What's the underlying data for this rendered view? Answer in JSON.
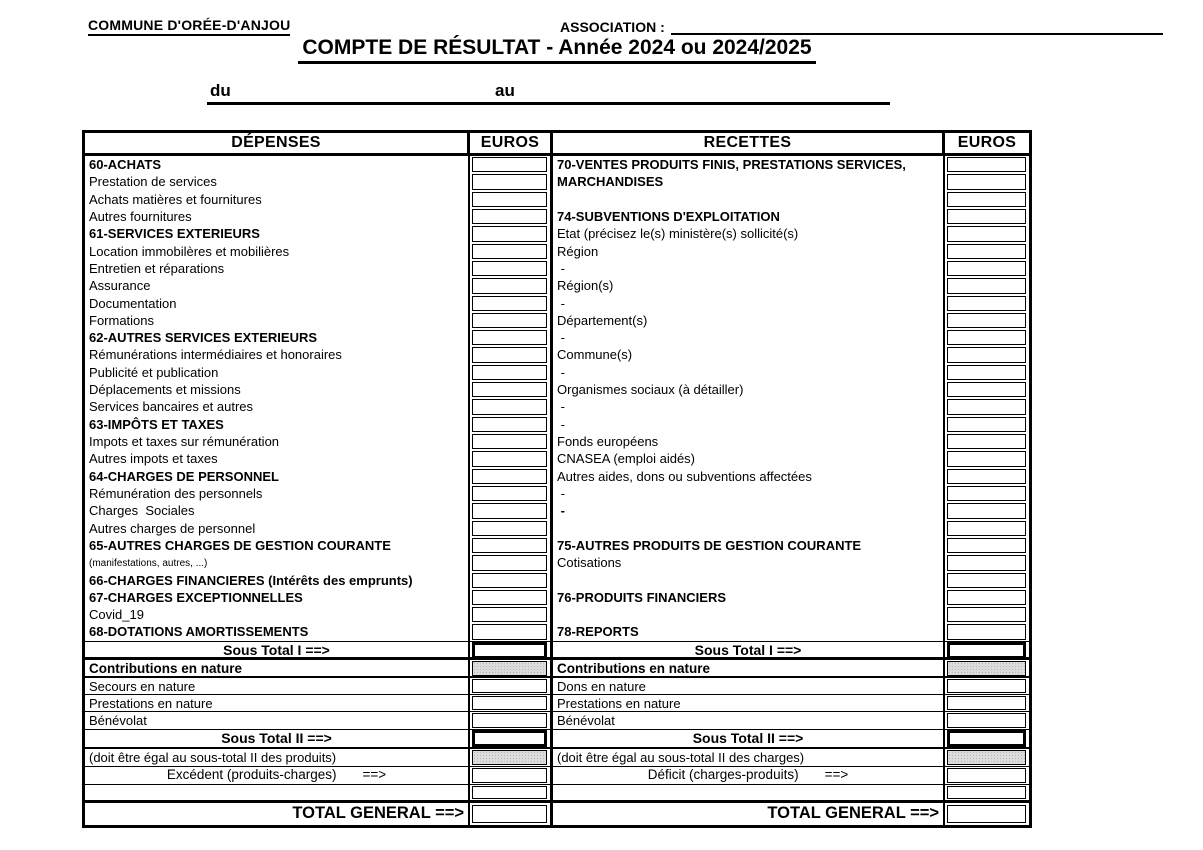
{
  "header": {
    "commune": "COMMUNE D'ORÉE-D'ANJOU",
    "association_label": "ASSOCIATION :",
    "title": "COMPTE DE RÉSULTAT - Année 2024 ou 2024/2025",
    "date_from_label": "du",
    "date_to_label": "au"
  },
  "table": {
    "headers": {
      "depenses": "DÉPENSES",
      "euros_left": "EUROS",
      "recettes": "RECETTES",
      "euros_right": "EUROS"
    },
    "body_rows": [
      {
        "dep": "60-ACHATS",
        "ds": "b",
        "rec": "70-VENTES PRODUITS FINIS, PRESTATIONS SERVICES,",
        "rs": "b"
      },
      {
        "dep": "Prestation de services",
        "ds": "n",
        "rec": "MARCHANDISES",
        "rs": "b"
      },
      {
        "dep": "Achats matières et fournitures",
        "ds": "n",
        "rec": "",
        "rs": "e"
      },
      {
        "dep": "Autres fournitures",
        "ds": "n",
        "rec": "74-SUBVENTIONS D'EXPLOITATION",
        "rs": "b"
      },
      {
        "dep": "61-SERVICES EXTERIEURS",
        "ds": "b",
        "rec": "Etat (précisez le(s) ministère(s) sollicité(s)",
        "rs": "n"
      },
      {
        "dep": "Location immobilères et mobilières",
        "ds": "n",
        "rec": "Région",
        "rs": "n"
      },
      {
        "dep": "Entretien et réparations",
        "ds": "n",
        "rec": " -",
        "rs": "n"
      },
      {
        "dep": "Assurance",
        "ds": "n",
        "rec": "Région(s)",
        "rs": "n"
      },
      {
        "dep": "Documentation",
        "ds": "n",
        "rec": " -",
        "rs": "n"
      },
      {
        "dep": "Formations",
        "ds": "n",
        "rec": "Département(s)",
        "rs": "n"
      },
      {
        "dep": "62-AUTRES SERVICES EXTERIEURS",
        "ds": "b",
        "rec": " -",
        "rs": "n"
      },
      {
        "dep": "Rémunérations intermédiaires et honoraires",
        "ds": "n",
        "rec": "Commune(s)",
        "rs": "n"
      },
      {
        "dep": "Publicité et publication",
        "ds": "n",
        "rec": " -",
        "rs": "n"
      },
      {
        "dep": "Déplacements et missions",
        "ds": "n",
        "rec": "Organismes sociaux (à détailler)",
        "rs": "n"
      },
      {
        "dep": "Services bancaires et autres",
        "ds": "n",
        "rec": " -",
        "rs": "n"
      },
      {
        "dep": "63-IMPÔTS ET TAXES",
        "ds": "b",
        "rec": " -",
        "rs": "n"
      },
      {
        "dep": "Impots et taxes sur rémunération",
        "ds": "n",
        "rec": "Fonds européens",
        "rs": "n"
      },
      {
        "dep": "Autres impots et taxes",
        "ds": "n",
        "rec": "CNASEA (emploi aidés)",
        "rs": "n"
      },
      {
        "dep": "64-CHARGES DE PERSONNEL",
        "ds": "b",
        "rec": "Autres aides, dons ou subventions affectées",
        "rs": "n"
      },
      {
        "dep": "Rémunération des personnels",
        "ds": "n",
        "rec": " -",
        "rs": "n"
      },
      {
        "dep": "Charges  Sociales",
        "ds": "n",
        "rec": " -",
        "rs": "b"
      },
      {
        "dep": "Autres charges de personnel",
        "ds": "n",
        "rec": "",
        "rs": "e"
      },
      {
        "dep": "65-AUTRES CHARGES DE GESTION COURANTE",
        "ds": "b",
        "rec": "75-AUTRES PRODUITS DE GESTION COURANTE",
        "rs": "b"
      },
      {
        "dep": "(manifestations, autres, ...)",
        "ds": "s",
        "rec": "Cotisations",
        "rs": "n"
      },
      {
        "dep": "66-CHARGES FINANCIERES (Intérêts des emprunts)",
        "ds": "b",
        "rec": "",
        "rs": "e"
      },
      {
        "dep": "67-CHARGES EXCEPTIONNELLES",
        "ds": "b",
        "rec": "76-PRODUITS FINANCIERS",
        "rs": "b"
      },
      {
        "dep": "Covid_19",
        "ds": "n",
        "rec": "",
        "rs": "e"
      },
      {
        "dep": "68-DOTATIONS AMORTISSEMENTS",
        "ds": "b",
        "rec": "78-REPORTS",
        "rs": "b"
      }
    ],
    "sous_total_1": {
      "dep": "Sous Total I ==>",
      "rec": "Sous Total I ==>"
    },
    "contributions": {
      "dep": "Contributions en nature",
      "rec": "Contributions en nature"
    },
    "nature_rows": [
      {
        "dep": "Secours en nature",
        "rec": "Dons en nature"
      },
      {
        "dep": "Prestations en nature",
        "rec": "Prestations en nature"
      },
      {
        "dep": "Bénévolat",
        "rec": "Bénévolat"
      }
    ],
    "sous_total_2": {
      "dep": "Sous Total II ==>",
      "rec": "Sous Total II ==>"
    },
    "equal_note": {
      "dep": "(doit être égal au sous-total II des produits)",
      "rec": "(doit être égal au sous-total II des charges)"
    },
    "result_row": {
      "dep": "Excédent (produits-charges)",
      "dep_arrow": "==>",
      "rec": "Déficit (charges-produits)",
      "rec_arrow": "==>"
    },
    "total_row": {
      "dep": "TOTAL GENERAL ==>",
      "rec": "TOTAL GENERAL ==>"
    }
  }
}
